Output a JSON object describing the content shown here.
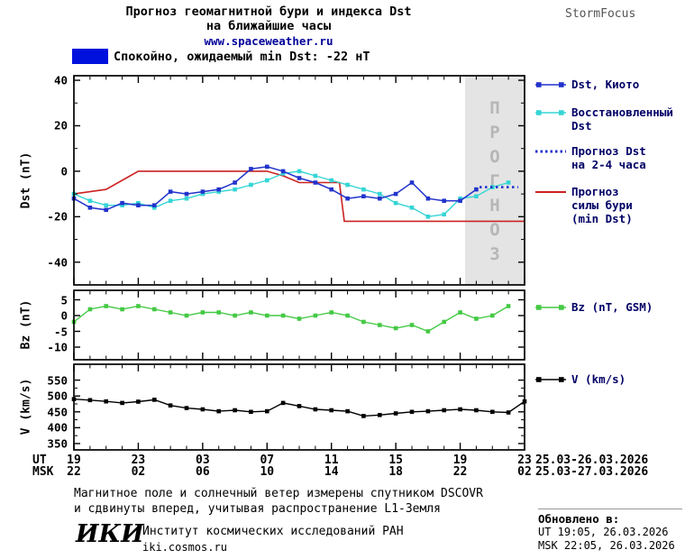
{
  "header": {
    "title_line1": "Прогноз геомагнитной бури и индекса Dst",
    "title_line2": "на ближайшие часы",
    "url": "www.spaceweather.ru",
    "brand": "StormFocus"
  },
  "status": {
    "label": "Спокойно, ожидаемый min Dst: -22 нТ",
    "color": "#0011dd"
  },
  "axis": {
    "ut_label": "UT",
    "msk_label": "MSK",
    "ut_date": "25.03-26.03.2026",
    "msk_date": "25.03-27.03.2026"
  },
  "chart_data": {
    "type": "line",
    "title": "Прогноз геомагнитной бури и индекса Dst на ближайшие часы",
    "x_unit": "hours, starting 19:00 UT (22:00 MSK) 25.03.2026",
    "xlim": [
      0,
      28
    ],
    "xticks": [
      0,
      4,
      8,
      12,
      16,
      20,
      24,
      28
    ],
    "xtick_labels_ut": [
      "19",
      "23",
      "03",
      "07",
      "11",
      "15",
      "19",
      "23"
    ],
    "xtick_labels_msk": [
      "22",
      "02",
      "06",
      "10",
      "14",
      "18",
      "22",
      "02"
    ],
    "panels": [
      {
        "id": "dst",
        "ylabel": "Dst (nT)",
        "ylim": [
          -50,
          42
        ],
        "yticks": [
          40,
          20,
          0,
          -20,
          -40
        ],
        "yticks_minor": [
          30,
          10,
          -10,
          -30
        ],
        "forecast_region_x": [
          24.3,
          28
        ],
        "forecast_region_label": "ПРОГНОЗ",
        "series": [
          {
            "id": "storm",
            "name": "Прогноз силы бури (min Dst)",
            "color": "#cc2222",
            "width": 1.6,
            "marker": false,
            "x": [
              0,
              1,
              2,
              3,
              4,
              12,
              13,
              14,
              16.5,
              16.8,
              28
            ],
            "y": [
              -10,
              -9,
              -8,
              -4,
              0,
              0,
              -2,
              -5,
              -5,
              -22,
              -22
            ]
          },
          {
            "id": "restored",
            "name": "Восстановленный Dst",
            "color": "#35d5d5",
            "width": 1.4,
            "marker": true,
            "x_start": 0,
            "x_step": 1,
            "y": [
              -10,
              -13,
              -15,
              -15,
              -14,
              -16,
              -13,
              -12,
              -10,
              -9,
              -8,
              -6,
              -4,
              -1,
              0,
              -2,
              -4,
              -6,
              -8,
              -10,
              -14,
              -16,
              -20,
              -19,
              -12,
              -11,
              -7,
              -5
            ]
          },
          {
            "id": "kyoto",
            "name": "Dst, Киото",
            "color": "#2233cc",
            "width": 1.5,
            "marker": true,
            "x_start": 0,
            "x_step": 1,
            "y": [
              -12,
              -16,
              -17,
              -14,
              -15,
              -15,
              -9,
              -10,
              -9,
              -8,
              -5,
              1,
              2,
              0,
              -3,
              -5,
              -8,
              -12,
              -11,
              -12,
              -10,
              -5,
              -12,
              -13,
              -13,
              -8
            ]
          },
          {
            "id": "forecast",
            "name": "Прогноз Dst на 2-4 часа",
            "color": "#2233cc",
            "width": 2.6,
            "marker": false,
            "dash": "2.5,3.5",
            "x": [
              25.2,
              26,
              27,
              27.6
            ],
            "y": [
              -7,
              -7,
              -7,
              -7
            ]
          }
        ]
      },
      {
        "id": "bz",
        "ylabel": "Bz (nT)",
        "ylim": [
          -14,
          8
        ],
        "yticks": [
          5,
          0,
          -5,
          -10
        ],
        "series": [
          {
            "id": "bz",
            "name": "Bz (nT, GSM)",
            "color": "#44c944",
            "width": 1.4,
            "marker": true,
            "x_start": 0,
            "x_step": 1,
            "y": [
              -2,
              2,
              3,
              2,
              3,
              2,
              1,
              0,
              1,
              1,
              0,
              1,
              0,
              0,
              -1,
              0,
              1,
              0,
              -2,
              -3,
              -4,
              -3,
              -5,
              -2,
              1,
              -1,
              0,
              3
            ]
          }
        ]
      },
      {
        "id": "v",
        "ylabel": "V (km/s)",
        "ylim": [
          330,
          600
        ],
        "yticks": [
          550,
          500,
          450,
          400,
          350
        ],
        "yticks_minor": [
          525,
          475,
          425,
          375
        ],
        "series": [
          {
            "id": "v",
            "name": "V (km/s)",
            "color": "#000000",
            "width": 1.4,
            "marker": true,
            "x_start": 0,
            "x_step": 1,
            "y": [
              490,
              487,
              483,
              478,
              482,
              488,
              470,
              462,
              458,
              452,
              455,
              450,
              452,
              478,
              468,
              458,
              455,
              452,
              437,
              440,
              445,
              450,
              452,
              455,
              458,
              455,
              450,
              448,
              483
            ]
          }
        ]
      }
    ]
  },
  "legend": {
    "items": [
      {
        "id": "kyoto",
        "lines": [
          "Dst, Киото"
        ],
        "color": "#2233cc",
        "style": "marker-line",
        "panel": "dst"
      },
      {
        "id": "restored",
        "lines": [
          "Восстановленный",
          "Dst"
        ],
        "color": "#35d5d5",
        "style": "marker-line",
        "panel": "dst"
      },
      {
        "id": "forecast",
        "lines": [
          "Прогноз Dst",
          "на 2-4 часа"
        ],
        "color": "#2233cc",
        "style": "dotted",
        "panel": "dst"
      },
      {
        "id": "storm",
        "lines": [
          "Прогноз",
          "силы бури",
          "(min Dst)"
        ],
        "color": "#cc2222",
        "style": "line",
        "panel": "dst"
      },
      {
        "id": "bz",
        "lines": [
          "Bz (nT, GSM)"
        ],
        "color": "#44c944",
        "style": "marker-line",
        "panel": "bz"
      },
      {
        "id": "v",
        "lines": [
          "V (km/s)"
        ],
        "color": "#000000",
        "style": "marker-line",
        "panel": "v"
      }
    ]
  },
  "footer": {
    "note_line1": "Магнитное поле и солнечный ветер измерены спутником DSCOVR",
    "note_line2": "и сдвинуты вперед, учитывая распространение L1-Земля",
    "logo_text": "ИКИ",
    "institute": "Институт космических исследований РАН",
    "site": "iki.cosmos.ru",
    "updated_label": "Обновлено в:",
    "updated_ut": "UT  19:05, 26.03.2026",
    "updated_msk": "MSK 22:05, 26.03.2026"
  }
}
